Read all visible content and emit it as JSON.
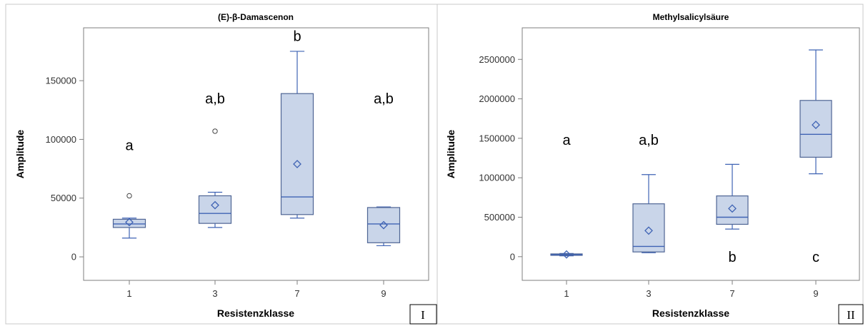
{
  "chart_data": [
    {
      "type": "box",
      "title": "(E)-β-Damascenon",
      "xlabel": "Resistenzklasse",
      "ylabel": "Amplitude",
      "categories": [
        "1",
        "3",
        "7",
        "9"
      ],
      "y_ticks": [
        "0",
        "50000",
        "100000",
        "150000"
      ],
      "ylim": [
        -20000,
        195000
      ],
      "boxes": [
        {
          "category": "1",
          "whisker_low": 16000,
          "q1": 25000,
          "median": 28000,
          "q3": 32000,
          "whisker_high": 33000,
          "mean": 29500,
          "outliers": [
            52000
          ],
          "letter": "a",
          "letter_y": 95000
        },
        {
          "category": "3",
          "whisker_low": 25000,
          "q1": 28500,
          "median": 37000,
          "q3": 52000,
          "whisker_high": 55000,
          "mean": 44000,
          "outliers": [
            107000
          ],
          "letter": "a,b",
          "letter_y": 135000
        },
        {
          "category": "7",
          "whisker_low": 33000,
          "q1": 36000,
          "median": 51000,
          "q3": 139000,
          "whisker_high": 175000,
          "mean": 79000,
          "outliers": [],
          "letter": "b",
          "letter_y": 188000
        },
        {
          "category": "9",
          "whisker_low": 9500,
          "q1": 12000,
          "median": 28000,
          "q3": 42000,
          "whisker_high": 42500,
          "mean": 27000,
          "outliers": [],
          "letter": "a,b",
          "letter_y": 135000
        }
      ],
      "panel_tag": "I"
    },
    {
      "type": "box",
      "title": "Methylsalicylsäure",
      "xlabel": "Resistenzklasse",
      "ylabel": "Amplitude",
      "categories": [
        "1",
        "3",
        "7",
        "9"
      ],
      "y_ticks": [
        "0",
        "500000",
        "1000000",
        "1500000",
        "2000000",
        "2500000"
      ],
      "ylim": [
        -300000,
        2900000
      ],
      "boxes": [
        {
          "category": "1",
          "whisker_low": 10000,
          "q1": 18000,
          "median": 25000,
          "q3": 35000,
          "whisker_high": 40000,
          "mean": 28000,
          "outliers": [],
          "letter": "a",
          "letter_y": 1480000
        },
        {
          "category": "3",
          "whisker_low": 50000,
          "q1": 60000,
          "median": 130000,
          "q3": 670000,
          "whisker_high": 1040000,
          "mean": 330000,
          "outliers": [],
          "letter": "a,b",
          "letter_y": 1480000
        },
        {
          "category": "7",
          "whisker_low": 350000,
          "q1": 410000,
          "median": 500000,
          "q3": 770000,
          "whisker_high": 1170000,
          "mean": 610000,
          "outliers": [],
          "letter": "b",
          "letter_y": 0
        },
        {
          "category": "9",
          "whisker_low": 1050000,
          "q1": 1260000,
          "median": 1550000,
          "q3": 1980000,
          "whisker_high": 2620000,
          "mean": 1670000,
          "outliers": [],
          "letter": "c",
          "letter_y": 0
        }
      ],
      "panel_tag": "II"
    }
  ]
}
